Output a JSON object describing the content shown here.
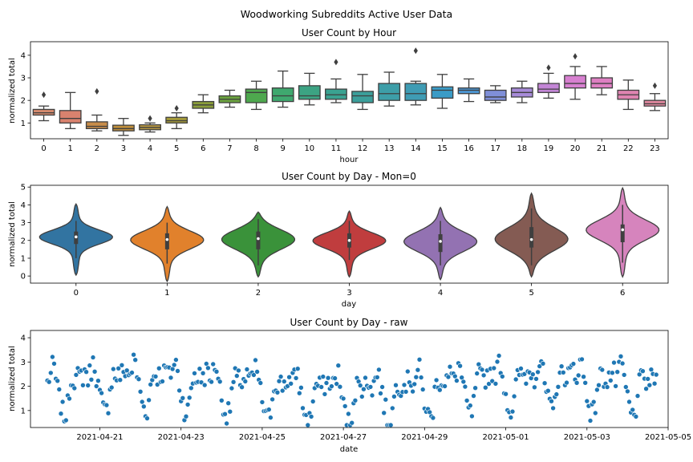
{
  "suptitle": "Woodworking Subreddits Active User Data",
  "chart_data": [
    {
      "type": "box",
      "title": "User Count by Hour",
      "xlabel": "hour",
      "ylabel": "normalized total",
      "ylim": [
        0.3,
        4.6
      ],
      "yticks": [
        1,
        2,
        3,
        4
      ],
      "categories": [
        "0",
        "1",
        "2",
        "3",
        "4",
        "5",
        "6",
        "7",
        "8",
        "9",
        "10",
        "11",
        "12",
        "13",
        "14",
        "15",
        "16",
        "17",
        "18",
        "19",
        "20",
        "21",
        "22",
        "23"
      ],
      "colors": [
        "#d48a6e",
        "#d9826e",
        "#c88d4a",
        "#c08f3c",
        "#b89843",
        "#a59b3a",
        "#8a9d3a",
        "#6ba23f",
        "#4ea84e",
        "#3fa86f",
        "#3ca383",
        "#3aa291",
        "#3b9f9b",
        "#3d9ea8",
        "#3f9cb4",
        "#3a9bc6",
        "#4c96d2",
        "#7f8fd8",
        "#a78bd8",
        "#c386d6",
        "#d780d0",
        "#de7fc2",
        "#df84b1",
        "#e0889f"
      ],
      "series": [
        {
          "q1": 1.35,
          "median": 1.45,
          "q3": 1.6,
          "whislo": 1.1,
          "whishi": 1.75,
          "fliers": [
            2.25
          ]
        },
        {
          "q1": 1.0,
          "median": 1.2,
          "q3": 1.55,
          "whislo": 0.75,
          "whishi": 2.35,
          "fliers": []
        },
        {
          "q1": 0.75,
          "median": 0.85,
          "q3": 1.05,
          "whislo": 0.65,
          "whishi": 1.35,
          "fliers": [
            2.4
          ]
        },
        {
          "q1": 0.65,
          "median": 0.75,
          "q3": 0.9,
          "whislo": 0.45,
          "whishi": 1.2,
          "fliers": []
        },
        {
          "q1": 0.7,
          "median": 0.8,
          "q3": 0.92,
          "whislo": 0.6,
          "whishi": 1.0,
          "fliers": [
            1.2
          ]
        },
        {
          "q1": 1.0,
          "median": 1.1,
          "q3": 1.25,
          "whislo": 0.75,
          "whishi": 1.45,
          "fliers": [
            1.65
          ]
        },
        {
          "q1": 1.65,
          "median": 1.8,
          "q3": 1.95,
          "whislo": 1.45,
          "whishi": 2.25,
          "fliers": []
        },
        {
          "q1": 1.9,
          "median": 2.05,
          "q3": 2.2,
          "whislo": 1.7,
          "whishi": 2.45,
          "fliers": []
        },
        {
          "q1": 1.9,
          "median": 2.35,
          "q3": 2.5,
          "whislo": 1.6,
          "whishi": 2.85,
          "fliers": []
        },
        {
          "q1": 1.95,
          "median": 2.2,
          "q3": 2.55,
          "whislo": 1.7,
          "whishi": 3.3,
          "fliers": []
        },
        {
          "q1": 2.05,
          "median": 2.2,
          "q3": 2.65,
          "whislo": 1.8,
          "whishi": 3.2,
          "fliers": []
        },
        {
          "q1": 2.05,
          "median": 2.25,
          "q3": 2.5,
          "whislo": 1.9,
          "whishi": 2.95,
          "fliers": [
            3.7
          ]
        },
        {
          "q1": 1.9,
          "median": 2.2,
          "q3": 2.4,
          "whislo": 1.6,
          "whishi": 3.15,
          "fliers": []
        },
        {
          "q1": 2.0,
          "median": 2.3,
          "q3": 2.75,
          "whislo": 1.75,
          "whishi": 3.25,
          "fliers": []
        },
        {
          "q1": 2.0,
          "median": 2.3,
          "q3": 2.75,
          "whislo": 1.8,
          "whishi": 2.85,
          "fliers": [
            4.2
          ]
        },
        {
          "q1": 2.1,
          "median": 2.45,
          "q3": 2.6,
          "whislo": 1.65,
          "whishi": 3.15,
          "fliers": []
        },
        {
          "q1": 2.3,
          "median": 2.45,
          "q3": 2.55,
          "whislo": 1.95,
          "whishi": 2.95,
          "fliers": []
        },
        {
          "q1": 2.0,
          "median": 2.15,
          "q3": 2.45,
          "whislo": 1.9,
          "whishi": 2.65,
          "fliers": []
        },
        {
          "q1": 2.15,
          "median": 2.35,
          "q3": 2.55,
          "whislo": 1.9,
          "whishi": 2.85,
          "fliers": []
        },
        {
          "q1": 2.35,
          "median": 2.5,
          "q3": 2.75,
          "whislo": 2.1,
          "whishi": 3.2,
          "fliers": [
            3.45
          ]
        },
        {
          "q1": 2.55,
          "median": 2.75,
          "q3": 3.1,
          "whislo": 2.05,
          "whishi": 3.5,
          "fliers": [
            3.95
          ]
        },
        {
          "q1": 2.55,
          "median": 2.75,
          "q3": 3.0,
          "whislo": 2.25,
          "whishi": 3.5,
          "fliers": []
        },
        {
          "q1": 2.05,
          "median": 2.25,
          "q3": 2.45,
          "whislo": 1.6,
          "whishi": 2.9,
          "fliers": []
        },
        {
          "q1": 1.75,
          "median": 1.85,
          "q3": 2.0,
          "whislo": 1.55,
          "whishi": 2.3,
          "fliers": [
            2.65
          ]
        }
      ]
    },
    {
      "type": "violin",
      "title": "User Count by Day - Mon=0",
      "xlabel": "day",
      "ylabel": "normalized total",
      "ylim": [
        -0.4,
        5.1
      ],
      "yticks": [
        0,
        1,
        2,
        3,
        4,
        5
      ],
      "categories": [
        "0",
        "1",
        "2",
        "3",
        "4",
        "5",
        "6"
      ],
      "colors": [
        "#3274a1",
        "#e1812c",
        "#3a923a",
        "#c03d3e",
        "#9372b2",
        "#845b53",
        "#d684bd"
      ],
      "series": [
        {
          "min": 0.05,
          "max": 4.05,
          "median": 2.2,
          "q1": 1.8,
          "q3": 2.5,
          "whislo": 1.0,
          "whishi": 3.1
        },
        {
          "min": -0.3,
          "max": 3.9,
          "median": 2.05,
          "q1": 1.5,
          "q3": 2.4,
          "whislo": 0.7,
          "whishi": 3.0
        },
        {
          "min": -0.05,
          "max": 3.6,
          "median": 2.1,
          "q1": 1.5,
          "q3": 2.5,
          "whislo": 0.6,
          "whishi": 3.2
        },
        {
          "min": -0.05,
          "max": 3.65,
          "median": 2.0,
          "q1": 1.6,
          "q3": 2.4,
          "whislo": 0.9,
          "whishi": 3.1
        },
        {
          "min": -0.2,
          "max": 3.85,
          "median": 1.95,
          "q1": 1.35,
          "q3": 2.35,
          "whislo": 0.6,
          "whishi": 3.1
        },
        {
          "min": -0.05,
          "max": 4.65,
          "median": 2.05,
          "q1": 1.6,
          "q3": 2.75,
          "whislo": 0.6,
          "whishi": 3.8
        },
        {
          "min": -0.05,
          "max": 4.95,
          "median": 2.6,
          "q1": 1.9,
          "q3": 2.9,
          "whislo": 0.75,
          "whishi": 4.0
        }
      ]
    },
    {
      "type": "scatter",
      "title": "User Count by Day - raw",
      "xlabel": "date",
      "ylabel": "normalized total",
      "xlim": [
        "2021-04-19T07:00",
        "2021-05-05"
      ],
      "ylim": [
        0.3,
        4.3
      ],
      "yticks": [
        1,
        2,
        3,
        4
      ],
      "xticks": [
        {
          "label": "2021-04-21",
          "date": "2021-04-21"
        },
        {
          "label": "2021-04-23",
          "date": "2021-04-23"
        },
        {
          "label": "2021-04-25",
          "date": "2021-04-25"
        },
        {
          "label": "2021-04-27",
          "date": "2021-04-27"
        },
        {
          "label": "2021-04-29",
          "date": "2021-04-29"
        },
        {
          "label": "2021-05-01",
          "date": "2021-05-01"
        },
        {
          "label": "2021-05-03",
          "date": "2021-05-03"
        },
        {
          "label": "2021-05-05",
          "date": "2021-05-05"
        }
      ],
      "color": "#1f77b4",
      "start": "2021-04-19T17:00",
      "end": "2021-05-04T17:00",
      "hourly_profile": [
        1.45,
        1.2,
        0.85,
        0.75,
        0.8,
        1.1,
        1.8,
        2.05,
        2.35,
        2.2,
        2.2,
        2.25,
        2.2,
        2.3,
        2.3,
        2.45,
        2.45,
        2.15,
        2.35,
        2.5,
        2.75,
        2.75,
        2.25,
        1.85
      ]
    }
  ]
}
